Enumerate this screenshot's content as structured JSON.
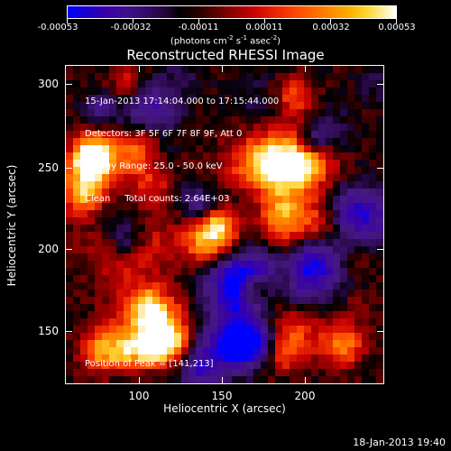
{
  "colorbar": {
    "labels": [
      "-0.00053",
      "-0.00032",
      "-0.00011",
      "0.00011",
      "0.00032",
      "0.00053"
    ],
    "units_main": "(photons cm",
    "units_exp1": "-2",
    "units_s": " s",
    "units_exp2": "-1",
    "units_asec": " asec",
    "units_exp3": "-2",
    "units_close": ")"
  },
  "title": "Reconstructed RHESSI Image",
  "info": {
    "time": "15-Jan-2013 17:14:04.000 to 17:15:44.000",
    "detectors": "Detectors: 3F 5F 6F 7F 8F 9F, Att 0",
    "energy": "Energy Range: 25.0 - 50.0 keV",
    "method": "Clean     Total counts: 2.64E+03"
  },
  "peak": "Position of Peak = [141,213]",
  "axes": {
    "xlabel": "Heliocentric X (arcsec)",
    "ylabel": "Heliocentric Y (arcsec)",
    "xticks": [
      "100",
      "150",
      "200"
    ],
    "yticks": [
      "300",
      "250",
      "200",
      "150"
    ],
    "xlim": [
      60,
      250
    ],
    "ylim": [
      116,
      310
    ]
  },
  "footer": "18-Jan-2013 19:40",
  "colors": {
    "background": "#000000",
    "text": "#ffffff"
  }
}
